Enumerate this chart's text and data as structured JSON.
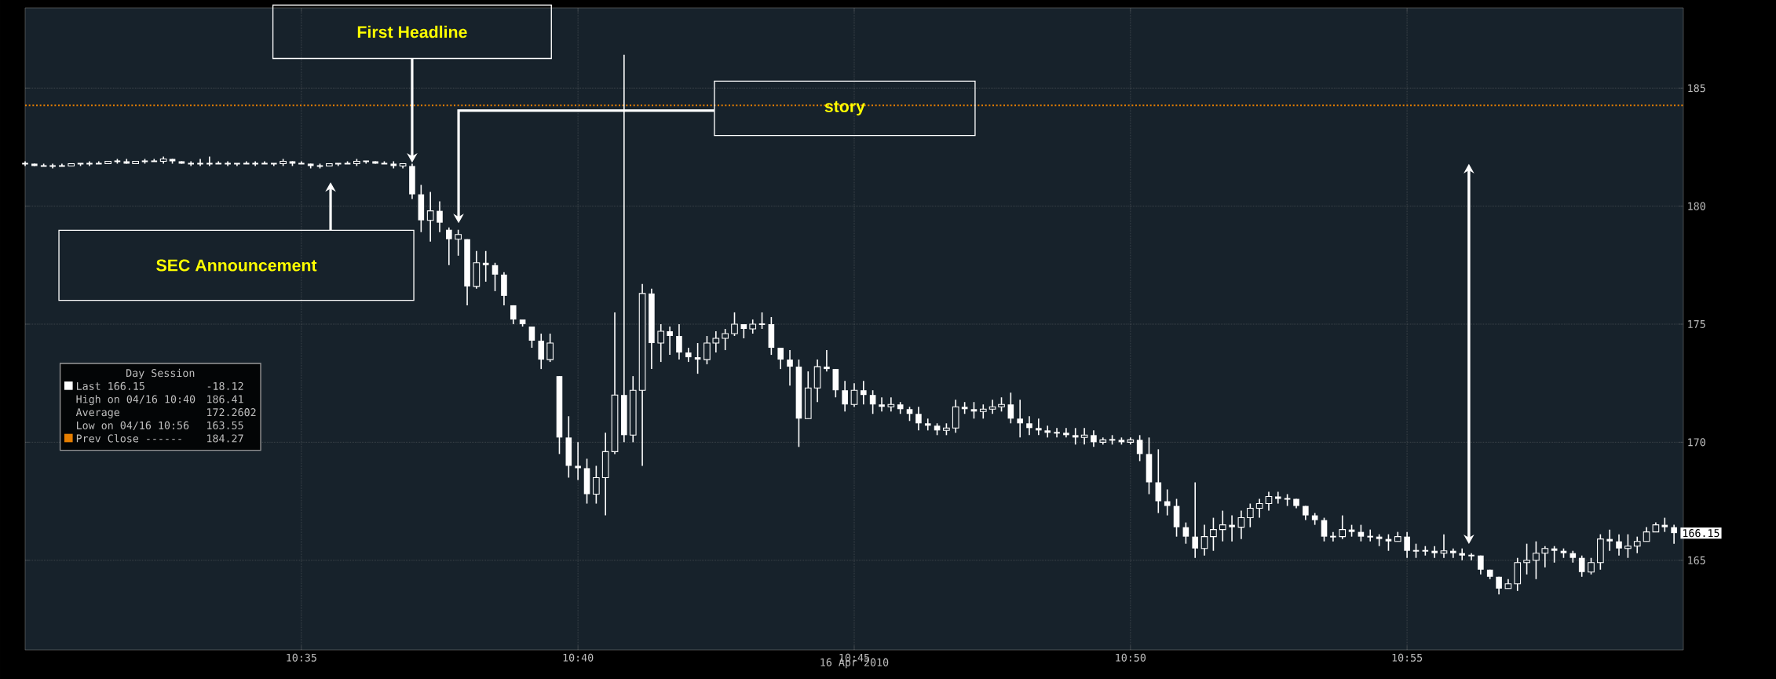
{
  "chart_data": {
    "type": "candlestick",
    "color": "#ffffff",
    "xlabel": "16 Apr 2010",
    "x": [
      10.5,
      10.5028,
      10.5056,
      10.5083,
      10.5111,
      10.5139,
      10.5167,
      10.5194,
      10.5222,
      10.525,
      10.5278,
      10.5306,
      10.5333,
      10.5361,
      10.5389,
      10.5417,
      10.5444,
      10.5472,
      10.55,
      10.5528,
      10.5556,
      10.5583,
      10.5611,
      10.5639,
      10.5667,
      10.5694,
      10.5722,
      10.575,
      10.5778,
      10.5806,
      10.5833,
      10.5861,
      10.5889,
      10.5917,
      10.5944,
      10.5972,
      10.6,
      10.6028,
      10.6056,
      10.6083,
      10.6111,
      10.6139,
      10.6167,
      10.6194,
      10.6222,
      10.625,
      10.6278,
      10.6306,
      10.6333,
      10.6361,
      10.6389,
      10.6417,
      10.6444,
      10.6472,
      10.65,
      10.6528,
      10.6556,
      10.6583,
      10.6611,
      10.6639,
      10.6667,
      10.6694,
      10.6722,
      10.675,
      10.6778,
      10.6806,
      10.6833,
      10.6861,
      10.6889,
      10.6917,
      10.6944,
      10.6972,
      10.7,
      10.7028,
      10.7056,
      10.7083,
      10.7111,
      10.7139,
      10.7167,
      10.7194,
      10.7222,
      10.725,
      10.7278,
      10.7306,
      10.7333,
      10.7361,
      10.7389,
      10.7417,
      10.7444,
      10.7472,
      10.75,
      10.7528,
      10.7556,
      10.7583,
      10.7611,
      10.7639,
      10.7667,
      10.7694,
      10.7722,
      10.775,
      10.7778,
      10.7806,
      10.7833,
      10.7861,
      10.7889,
      10.7917,
      10.7944,
      10.7972,
      10.8,
      10.8028,
      10.8056,
      10.8083,
      10.8111,
      10.8139,
      10.8167,
      10.8194,
      10.8222,
      10.825,
      10.8278,
      10.8306,
      10.8333,
      10.8361,
      10.8389,
      10.8417,
      10.8444,
      10.8472,
      10.85,
      10.8528,
      10.8556,
      10.8583,
      10.8611,
      10.8639,
      10.8667,
      10.8694,
      10.8722,
      10.875,
      10.8778,
      10.8806,
      10.8833,
      10.8861,
      10.8889,
      10.8917,
      10.8944,
      10.8972,
      10.9,
      10.9028,
      10.9056,
      10.9083,
      10.9111,
      10.9139,
      10.9167,
      10.9194,
      10.9222,
      10.925,
      10.9278,
      10.9306,
      10.9333,
      10.9361,
      10.9389,
      10.9417,
      10.9444,
      10.9472,
      10.95,
      10.9528,
      10.9556,
      10.9583,
      10.9611,
      10.9639,
      10.9667,
      10.9694,
      10.9722,
      10.975,
      10.9778,
      10.9806,
      10.9833,
      10.9861,
      10.9889,
      10.9917,
      10.9944,
      10.9972
    ],
    "ohlc": [
      [
        181.8,
        181.9,
        181.7,
        181.8
      ],
      [
        181.8,
        181.8,
        181.7,
        181.7
      ],
      [
        181.7,
        181.8,
        181.7,
        181.7
      ],
      [
        181.7,
        181.8,
        181.6,
        181.7
      ],
      [
        181.7,
        181.8,
        181.7,
        181.7
      ],
      [
        181.7,
        181.8,
        181.7,
        181.8
      ],
      [
        181.8,
        181.8,
        181.7,
        181.8
      ],
      [
        181.8,
        181.9,
        181.7,
        181.8
      ],
      [
        181.8,
        181.9,
        181.8,
        181.8
      ],
      [
        181.8,
        181.9,
        181.8,
        181.9
      ],
      [
        181.9,
        182.0,
        181.8,
        181.9
      ],
      [
        181.9,
        182.0,
        181.8,
        181.8
      ],
      [
        181.8,
        181.9,
        181.8,
        181.9
      ],
      [
        181.9,
        182.0,
        181.8,
        181.9
      ],
      [
        181.9,
        182.0,
        181.9,
        181.9
      ],
      [
        181.9,
        182.1,
        181.8,
        182.0
      ],
      [
        182.0,
        182.0,
        181.8,
        181.9
      ],
      [
        181.9,
        181.9,
        181.8,
        181.8
      ],
      [
        181.8,
        181.9,
        181.7,
        181.8
      ],
      [
        181.8,
        182.0,
        181.7,
        181.8
      ],
      [
        181.8,
        182.1,
        181.7,
        181.8
      ],
      [
        181.8,
        181.9,
        181.8,
        181.8
      ],
      [
        181.8,
        181.9,
        181.7,
        181.8
      ],
      [
        181.8,
        181.8,
        181.7,
        181.8
      ],
      [
        181.8,
        181.9,
        181.8,
        181.8
      ],
      [
        181.8,
        181.9,
        181.7,
        181.8
      ],
      [
        181.8,
        181.9,
        181.8,
        181.8
      ],
      [
        181.8,
        181.8,
        181.7,
        181.8
      ],
      [
        181.8,
        182.0,
        181.7,
        181.9
      ],
      [
        181.9,
        181.9,
        181.7,
        181.8
      ],
      [
        181.8,
        181.9,
        181.8,
        181.8
      ],
      [
        181.8,
        181.8,
        181.6,
        181.7
      ],
      [
        181.7,
        181.8,
        181.6,
        181.7
      ],
      [
        181.7,
        181.8,
        181.7,
        181.8
      ],
      [
        181.8,
        181.8,
        181.7,
        181.8
      ],
      [
        181.8,
        181.9,
        181.8,
        181.8
      ],
      [
        181.8,
        182.0,
        181.7,
        181.9
      ],
      [
        181.9,
        181.9,
        181.8,
        181.9
      ],
      [
        181.9,
        181.9,
        181.8,
        181.8
      ],
      [
        181.8,
        181.9,
        181.8,
        181.8
      ],
      [
        181.8,
        181.9,
        181.6,
        181.7
      ],
      [
        181.7,
        181.8,
        181.6,
        181.8
      ],
      [
        181.7,
        181.8,
        180.3,
        180.5
      ],
      [
        180.5,
        180.9,
        178.9,
        179.4
      ],
      [
        179.4,
        180.6,
        178.5,
        179.8
      ],
      [
        179.8,
        180.2,
        178.9,
        179.3
      ],
      [
        179.0,
        179.1,
        177.5,
        178.6
      ],
      [
        178.6,
        179.0,
        177.9,
        178.8
      ],
      [
        178.6,
        178.6,
        175.8,
        176.6
      ],
      [
        176.6,
        178.1,
        176.5,
        177.6
      ],
      [
        177.6,
        178.1,
        176.8,
        177.5
      ],
      [
        177.5,
        177.6,
        176.4,
        177.1
      ],
      [
        177.1,
        177.2,
        175.8,
        176.2
      ],
      [
        175.8,
        175.8,
        175.0,
        175.2
      ],
      [
        175.2,
        175.2,
        174.9,
        175.0
      ],
      [
        174.9,
        174.9,
        174.0,
        174.3
      ],
      [
        174.3,
        174.6,
        173.1,
        173.5
      ],
      [
        173.5,
        174.6,
        173.4,
        174.2
      ],
      [
        172.8,
        172.8,
        169.5,
        170.2
      ],
      [
        170.2,
        171.1,
        168.5,
        169.0
      ],
      [
        169.0,
        170.0,
        168.4,
        168.9
      ],
      [
        168.9,
        169.3,
        167.4,
        167.8
      ],
      [
        167.8,
        169.0,
        167.4,
        168.5
      ],
      [
        168.5,
        170.4,
        166.9,
        169.6
      ],
      [
        169.6,
        175.5,
        169.5,
        172.0
      ],
      [
        172.0,
        186.41,
        170.0,
        170.3
      ],
      [
        170.3,
        172.8,
        170.0,
        172.2
      ],
      [
        172.2,
        176.7,
        169.0,
        176.3
      ],
      [
        176.3,
        176.5,
        173.1,
        174.2
      ],
      [
        174.2,
        175.0,
        173.4,
        174.7
      ],
      [
        174.7,
        174.9,
        173.7,
        174.5
      ],
      [
        174.5,
        175.0,
        173.5,
        173.8
      ],
      [
        173.8,
        174.0,
        173.4,
        173.6
      ],
      [
        173.6,
        174.2,
        172.9,
        173.5
      ],
      [
        173.5,
        174.5,
        173.3,
        174.2
      ],
      [
        174.2,
        174.7,
        173.8,
        174.4
      ],
      [
        174.4,
        174.8,
        173.9,
        174.6
      ],
      [
        174.6,
        175.5,
        174.5,
        175.0
      ],
      [
        175.0,
        175.0,
        174.4,
        174.8
      ],
      [
        174.8,
        175.2,
        174.6,
        175.0
      ],
      [
        175.0,
        175.5,
        174.8,
        175.0
      ],
      [
        175.0,
        175.3,
        173.7,
        174.0
      ],
      [
        174.0,
        174.0,
        173.1,
        173.5
      ],
      [
        173.5,
        173.9,
        172.4,
        173.2
      ],
      [
        173.2,
        173.5,
        169.8,
        171.0
      ],
      [
        171.0,
        173.0,
        171.0,
        172.3
      ],
      [
        172.3,
        173.5,
        171.7,
        173.2
      ],
      [
        173.2,
        173.9,
        173.0,
        173.1
      ],
      [
        173.1,
        173.1,
        171.9,
        172.2
      ],
      [
        172.2,
        172.6,
        171.3,
        171.6
      ],
      [
        171.6,
        172.5,
        171.5,
        172.2
      ],
      [
        172.2,
        172.6,
        171.6,
        172.0
      ],
      [
        172.0,
        172.2,
        171.2,
        171.6
      ],
      [
        171.6,
        171.9,
        171.3,
        171.5
      ],
      [
        171.5,
        171.9,
        171.3,
        171.6
      ],
      [
        171.6,
        171.7,
        171.2,
        171.4
      ],
      [
        171.4,
        171.5,
        170.9,
        171.2
      ],
      [
        171.2,
        171.5,
        170.5,
        170.8
      ],
      [
        170.8,
        171.0,
        170.5,
        170.7
      ],
      [
        170.7,
        170.8,
        170.3,
        170.5
      ],
      [
        170.5,
        170.8,
        170.3,
        170.6
      ],
      [
        170.6,
        171.8,
        170.4,
        171.5
      ],
      [
        171.5,
        171.7,
        171.2,
        171.4
      ],
      [
        171.4,
        171.7,
        171.0,
        171.3
      ],
      [
        171.3,
        171.6,
        171.0,
        171.4
      ],
      [
        171.4,
        171.8,
        171.2,
        171.5
      ],
      [
        171.5,
        171.9,
        171.3,
        171.6
      ],
      [
        171.6,
        172.1,
        170.8,
        171.0
      ],
      [
        171.0,
        171.8,
        170.2,
        170.8
      ],
      [
        170.8,
        171.1,
        170.3,
        170.6
      ],
      [
        170.6,
        171.0,
        170.3,
        170.5
      ],
      [
        170.5,
        170.7,
        170.2,
        170.4
      ],
      [
        170.4,
        170.6,
        170.2,
        170.4
      ],
      [
        170.4,
        170.6,
        170.2,
        170.3
      ],
      [
        170.3,
        170.6,
        169.9,
        170.2
      ],
      [
        170.2,
        170.6,
        169.9,
        170.3
      ],
      [
        170.3,
        170.5,
        169.8,
        170.0
      ],
      [
        170.0,
        170.2,
        169.9,
        170.1
      ],
      [
        170.1,
        170.3,
        169.9,
        170.1
      ],
      [
        170.1,
        170.2,
        169.9,
        170.0
      ],
      [
        170.0,
        170.2,
        169.9,
        170.1
      ],
      [
        170.1,
        170.3,
        169.2,
        169.5
      ],
      [
        169.5,
        170.2,
        167.8,
        168.3
      ],
      [
        168.3,
        169.7,
        167.0,
        167.5
      ],
      [
        167.5,
        168.0,
        166.9,
        167.3
      ],
      [
        167.3,
        167.6,
        166.0,
        166.4
      ],
      [
        166.4,
        166.6,
        165.7,
        166.0
      ],
      [
        166.0,
        168.3,
        165.1,
        165.5
      ],
      [
        165.5,
        166.5,
        165.2,
        166.0
      ],
      [
        166.0,
        166.8,
        165.4,
        166.3
      ],
      [
        166.3,
        167.1,
        165.8,
        166.5
      ],
      [
        166.5,
        166.9,
        165.8,
        166.4
      ],
      [
        166.4,
        167.1,
        165.9,
        166.8
      ],
      [
        166.8,
        167.4,
        166.4,
        167.2
      ],
      [
        167.2,
        167.6,
        166.8,
        167.4
      ],
      [
        167.4,
        167.9,
        167.1,
        167.7
      ],
      [
        167.7,
        167.9,
        167.4,
        167.6
      ],
      [
        167.6,
        167.8,
        167.3,
        167.6
      ],
      [
        167.6,
        167.6,
        167.2,
        167.3
      ],
      [
        167.3,
        167.3,
        166.7,
        166.9
      ],
      [
        166.9,
        167.0,
        166.5,
        166.7
      ],
      [
        166.7,
        166.8,
        165.8,
        166.0
      ],
      [
        166.0,
        166.2,
        165.8,
        166.0
      ],
      [
        166.0,
        166.9,
        165.9,
        166.3
      ],
      [
        166.3,
        166.5,
        166.0,
        166.2
      ],
      [
        166.2,
        166.5,
        165.8,
        166.0
      ],
      [
        166.0,
        166.3,
        165.8,
        166.0
      ],
      [
        166.0,
        166.1,
        165.6,
        165.9
      ],
      [
        165.9,
        166.1,
        165.4,
        165.8
      ],
      [
        165.8,
        166.2,
        165.8,
        166.0
      ],
      [
        166.0,
        166.2,
        165.1,
        165.4
      ],
      [
        165.4,
        165.7,
        165.1,
        165.4
      ],
      [
        165.4,
        165.6,
        165.2,
        165.4
      ],
      [
        165.4,
        165.6,
        165.1,
        165.3
      ],
      [
        165.3,
        166.1,
        165.1,
        165.4
      ],
      [
        165.4,
        165.5,
        165.1,
        165.3
      ],
      [
        165.3,
        165.5,
        165.0,
        165.2
      ],
      [
        165.2,
        165.3,
        165.0,
        165.2
      ],
      [
        165.2,
        165.2,
        164.4,
        164.6
      ],
      [
        164.6,
        164.6,
        164.2,
        164.3
      ],
      [
        164.3,
        164.3,
        163.55,
        163.8
      ],
      [
        163.8,
        164.2,
        163.8,
        164.0
      ],
      [
        164.0,
        165.1,
        163.7,
        164.9
      ],
      [
        164.9,
        165.7,
        164.4,
        165.0
      ],
      [
        165.0,
        165.8,
        164.2,
        165.3
      ],
      [
        165.3,
        165.6,
        164.7,
        165.5
      ],
      [
        165.5,
        165.6,
        164.9,
        165.4
      ],
      [
        165.4,
        165.5,
        165.1,
        165.3
      ],
      [
        165.3,
        165.4,
        164.9,
        165.1
      ],
      [
        165.1,
        165.2,
        164.3,
        164.5
      ],
      [
        164.5,
        165.1,
        164.4,
        164.9
      ],
      [
        164.9,
        166.1,
        164.6,
        165.9
      ],
      [
        165.9,
        166.3,
        165.4,
        165.8
      ],
      [
        165.8,
        166.1,
        165.2,
        165.5
      ],
      [
        165.5,
        166.1,
        165.1,
        165.6
      ],
      [
        165.6,
        166.0,
        165.3,
        165.8
      ],
      [
        165.8,
        166.4,
        165.8,
        166.2
      ],
      [
        166.2,
        166.6,
        166.2,
        166.5
      ],
      [
        166.5,
        166.8,
        166.2,
        166.4
      ],
      [
        166.4,
        166.5,
        165.7,
        166.15
      ]
    ],
    "xlim": [
      10.5,
      11.0
    ],
    "xticks": [
      {
        "value": 10.5833,
        "label": "10:35"
      },
      {
        "value": 10.6667,
        "label": "10:40"
      },
      {
        "value": 10.75,
        "label": "10:45"
      },
      {
        "value": 10.8333,
        "label": "10:50"
      },
      {
        "value": 10.9167,
        "label": "10:55"
      }
    ],
    "ylim": [
      161.2,
      188.4
    ],
    "yticks": [
      165,
      170,
      175,
      180,
      185
    ],
    "grid": true,
    "ref_lines": [
      {
        "axis": "y",
        "value": 184.27,
        "color": "#e67e00",
        "line_style": "dotted"
      }
    ],
    "annotations": [
      "SEC Announcement",
      {
        "text": "First Headline",
        "x": 10.6167,
        "y": 181.8
      },
      "story",
      {
        "text": "166.15",
        "x": 10.9972,
        "y": 166.15
      },
      "Day Session",
      "Last 166.15",
      "-18.12",
      "High on 04/16 10:40",
      "186.41",
      "Average",
      "172.2602",
      "Low on 04/16 10:56",
      "163.55",
      "Prev Close ------",
      "184.27"
    ]
  }
}
